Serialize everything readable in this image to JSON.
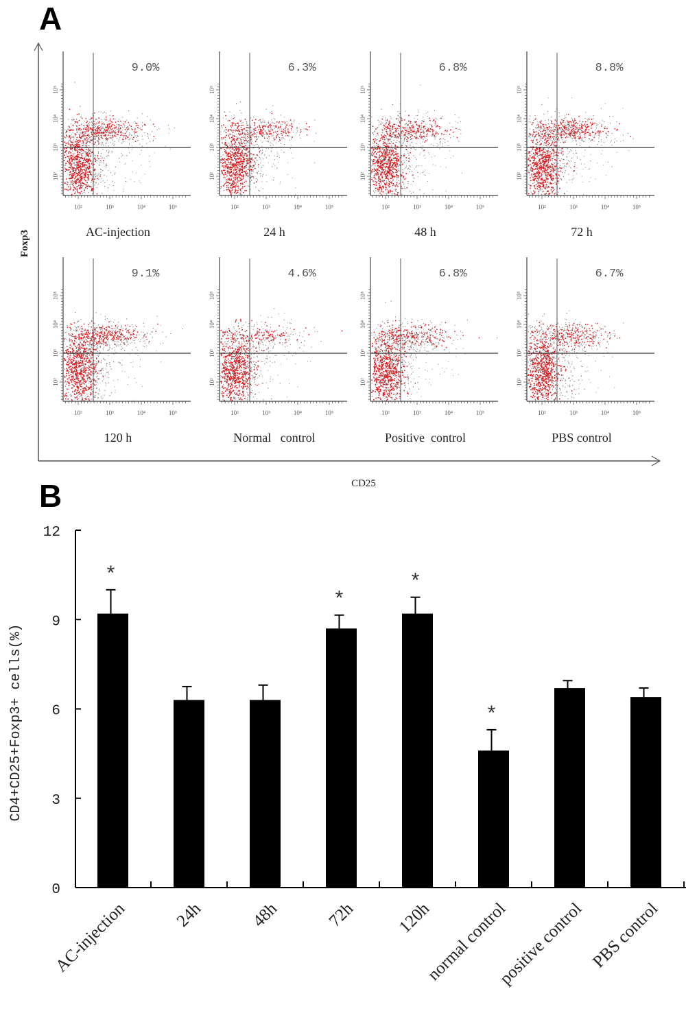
{
  "panel_a": {
    "letter": "A",
    "y_axis_label": "Foxp3",
    "x_axis_label": "CD25",
    "tick_labels": [
      "10²",
      "10³",
      "10⁴",
      "10⁵"
    ],
    "plots": [
      {
        "label": "AC-injection",
        "percent": "9.0%",
        "value": 9.0
      },
      {
        "label": "24 h",
        "percent": "6.3%",
        "value": 6.3
      },
      {
        "label": "48 h",
        "percent": "6.8%",
        "value": 6.8
      },
      {
        "label": "72 h",
        "percent": "8.8%",
        "value": 8.8
      },
      {
        "label": "120 h",
        "percent": "9.1%",
        "value": 9.1
      },
      {
        "label": "Normal   control",
        "percent": "4.6%",
        "value": 4.6
      },
      {
        "label": "Positive  control",
        "percent": "6.8%",
        "value": 6.8
      },
      {
        "label": "PBS control",
        "percent": "6.7%",
        "value": 6.7
      }
    ],
    "colors": {
      "dots_dense": "#e8141a",
      "dots_sparse": "#555555"
    }
  },
  "panel_b": {
    "letter": "B"
  },
  "chart_data": [
    {
      "type": "scatter",
      "title": "Flow cytometry CD25 vs Foxp3 (gated CD4+)",
      "xlabel": "CD25",
      "ylabel": "Foxp3",
      "axis_scale": "log",
      "ticks": [
        "10^2",
        "10^3",
        "10^4",
        "10^5"
      ],
      "panels": [
        {
          "name": "AC-injection",
          "upper_right_percent": 9.0
        },
        {
          "name": "24 h",
          "upper_right_percent": 6.3
        },
        {
          "name": "48 h",
          "upper_right_percent": 6.8
        },
        {
          "name": "72 h",
          "upper_right_percent": 8.8
        },
        {
          "name": "120 h",
          "upper_right_percent": 9.1
        },
        {
          "name": "Normal control",
          "upper_right_percent": 4.6
        },
        {
          "name": "Positive control",
          "upper_right_percent": 6.8
        },
        {
          "name": "PBS control",
          "upper_right_percent": 6.7
        }
      ]
    },
    {
      "type": "bar",
      "title": "",
      "xlabel": "",
      "ylabel": "CD4+CD25+Foxp3+ cells(%)",
      "ylim": [
        0,
        12
      ],
      "yticks": [
        0,
        3,
        6,
        9,
        12
      ],
      "grid": false,
      "legend": "none",
      "categories": [
        "AC-injection",
        "24h",
        "48h",
        "72h",
        "120h",
        "normal control",
        "positive control",
        "PBS control"
      ],
      "values": [
        9.2,
        6.3,
        6.3,
        8.7,
        9.2,
        4.6,
        6.7,
        6.4
      ],
      "errors": [
        0.8,
        0.45,
        0.5,
        0.45,
        0.55,
        0.7,
        0.25,
        0.3
      ],
      "significant": [
        true,
        false,
        false,
        true,
        true,
        true,
        false,
        false
      ],
      "significance_marker": "*",
      "bar_color": "#000000"
    }
  ]
}
